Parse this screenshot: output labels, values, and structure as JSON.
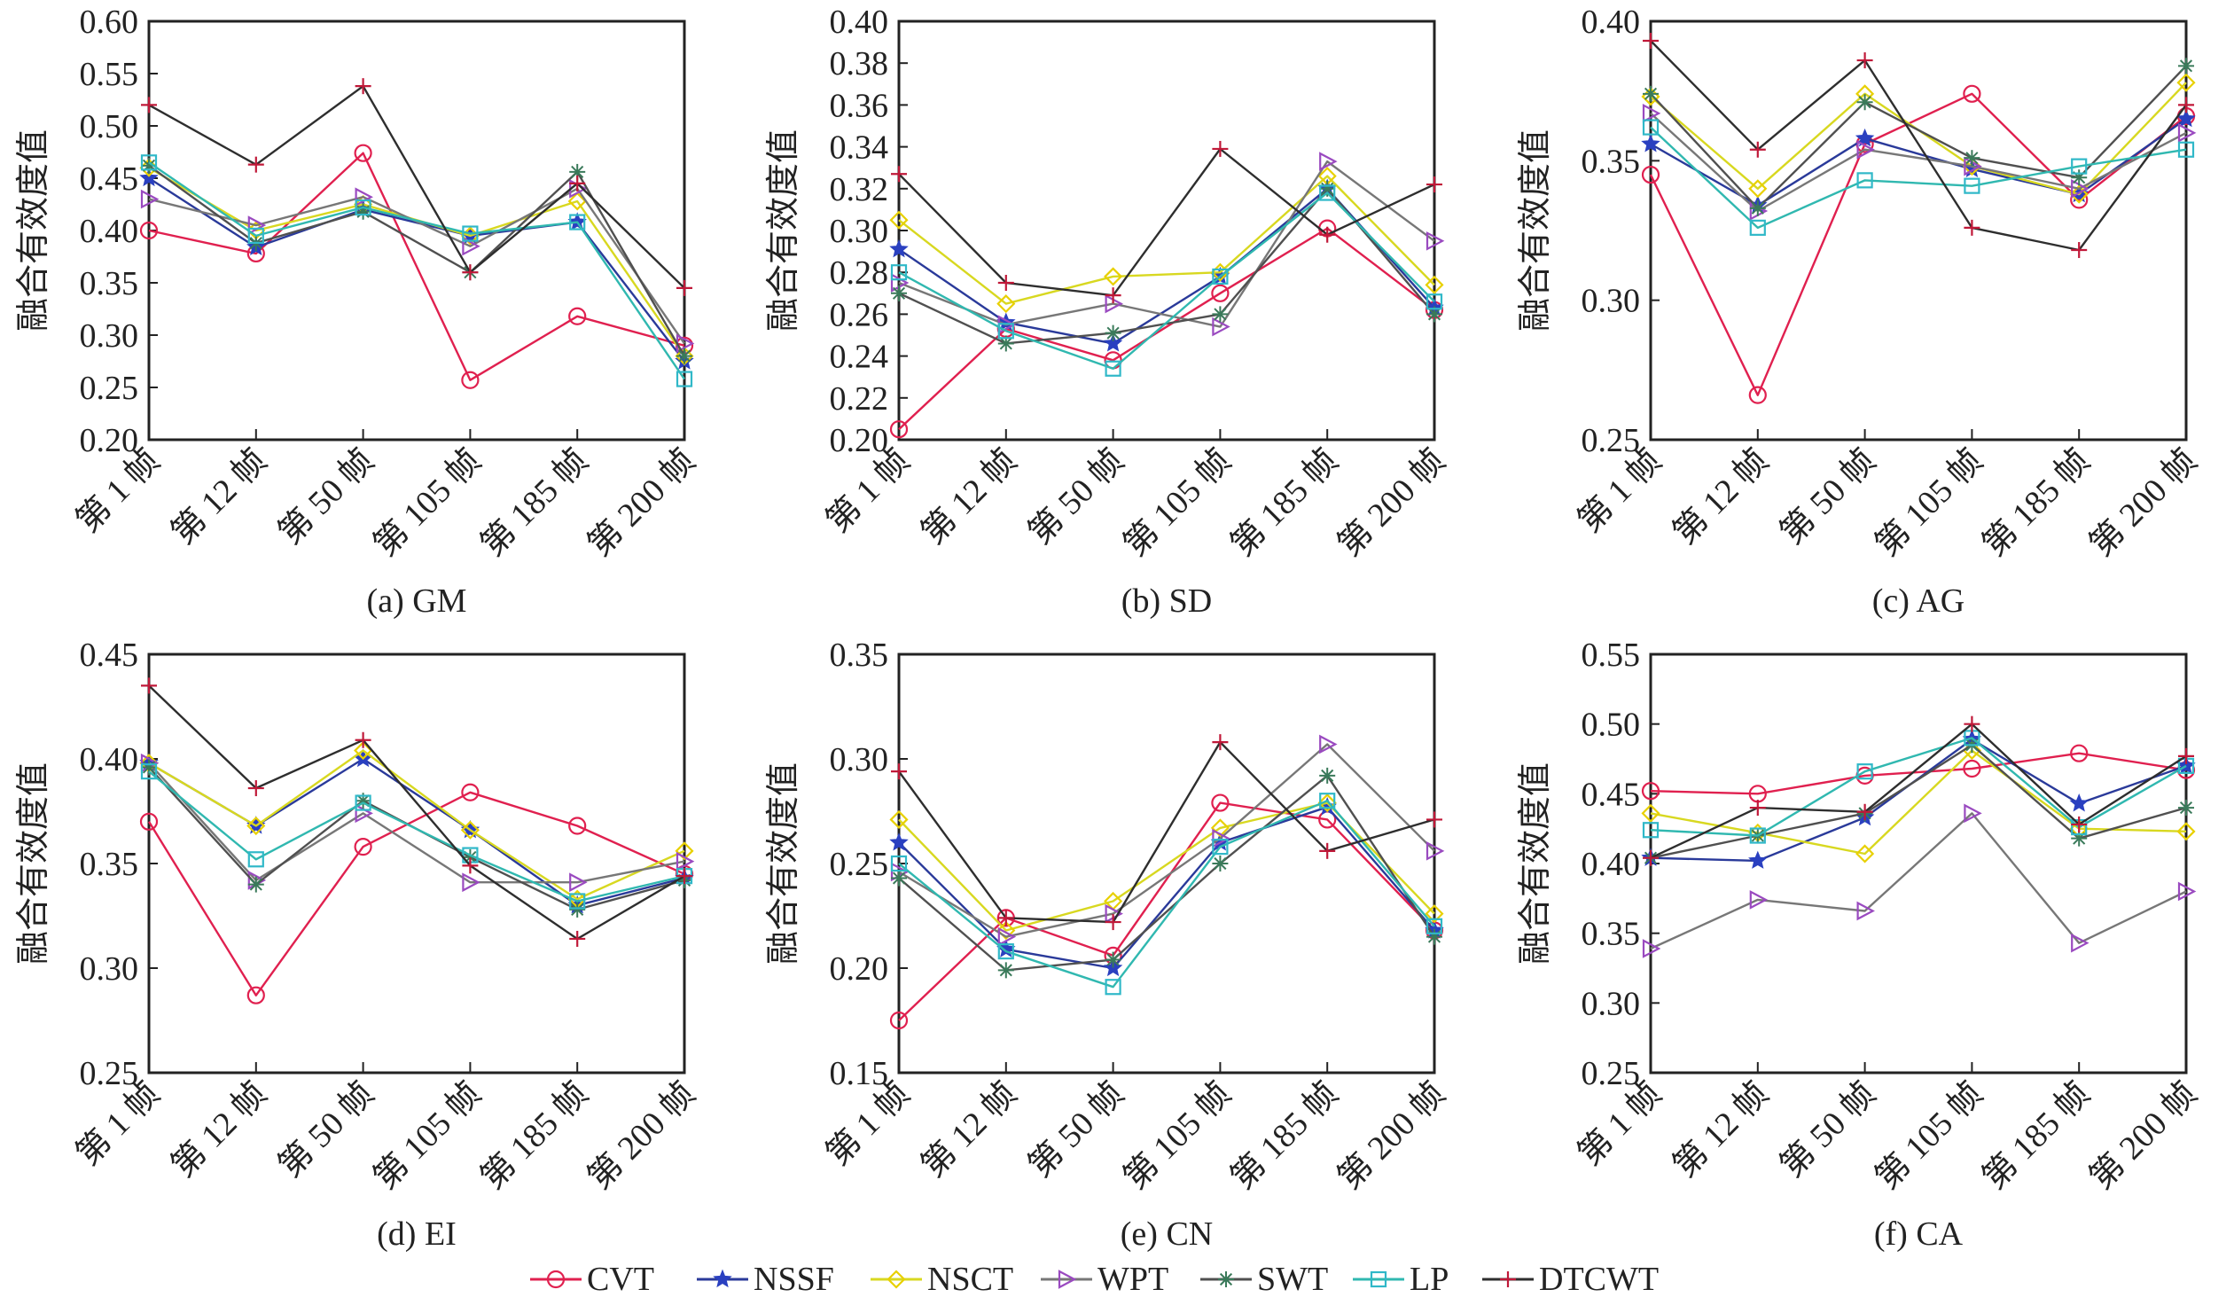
{
  "chart_data": [
    {
      "type": "line",
      "id": "a",
      "caption": "(a) GM",
      "ylabel": "融合有效度值",
      "xlabel": "",
      "ylim": [
        0.2,
        0.6
      ],
      "yticks": [
        "0.20",
        "0.25",
        "0.30",
        "0.35",
        "0.40",
        "0.45",
        "0.50",
        "0.55",
        "0.60"
      ],
      "categories": [
        "第 1 帧",
        "第 12 帧",
        "第 50 帧",
        "第 105 帧",
        "第 185 帧",
        "第 200 帧"
      ],
      "series": [
        {
          "name": "CVT",
          "values": [
            0.4,
            0.378,
            0.474,
            0.257,
            0.318,
            0.29
          ]
        },
        {
          "name": "NSSF",
          "values": [
            0.45,
            0.384,
            0.42,
            0.395,
            0.408,
            0.275
          ]
        },
        {
          "name": "NSCT",
          "values": [
            0.46,
            0.4,
            0.425,
            0.395,
            0.428,
            0.28
          ]
        },
        {
          "name": "WPT",
          "values": [
            0.43,
            0.405,
            0.432,
            0.385,
            0.44,
            0.292
          ]
        },
        {
          "name": "SWT",
          "values": [
            0.462,
            0.388,
            0.418,
            0.36,
            0.456,
            0.28
          ]
        },
        {
          "name": "LP",
          "values": [
            0.465,
            0.395,
            0.422,
            0.397,
            0.408,
            0.258
          ]
        },
        {
          "name": "DTCWT",
          "values": [
            0.52,
            0.463,
            0.538,
            0.36,
            0.445,
            0.345
          ]
        }
      ],
      "grid": false
    },
    {
      "type": "line",
      "id": "b",
      "caption": "(b) SD",
      "ylabel": "融合有效度值",
      "xlabel": "",
      "ylim": [
        0.2,
        0.4
      ],
      "yticks": [
        "0.20",
        "0.22",
        "0.24",
        "0.26",
        "0.28",
        "0.30",
        "0.32",
        "0.34",
        "0.36",
        "0.38",
        "0.40"
      ],
      "categories": [
        "第 1 帧",
        "第 12 帧",
        "第 50 帧",
        "第 105 帧",
        "第 185 帧",
        "第 200 帧"
      ],
      "series": [
        {
          "name": "CVT",
          "values": [
            0.205,
            0.253,
            0.238,
            0.27,
            0.301,
            0.262
          ]
        },
        {
          "name": "NSSF",
          "values": [
            0.291,
            0.256,
            0.246,
            0.278,
            0.32,
            0.263
          ]
        },
        {
          "name": "NSCT",
          "values": [
            0.305,
            0.265,
            0.278,
            0.28,
            0.326,
            0.274
          ]
        },
        {
          "name": "WPT",
          "values": [
            0.275,
            0.255,
            0.265,
            0.254,
            0.333,
            0.295
          ]
        },
        {
          "name": "SWT",
          "values": [
            0.27,
            0.246,
            0.251,
            0.26,
            0.32,
            0.26
          ]
        },
        {
          "name": "LP",
          "values": [
            0.28,
            0.252,
            0.234,
            0.278,
            0.318,
            0.266
          ]
        },
        {
          "name": "DTCWT",
          "values": [
            0.327,
            0.275,
            0.269,
            0.339,
            0.298,
            0.322
          ]
        }
      ],
      "grid": false
    },
    {
      "type": "line",
      "id": "c",
      "caption": "(c) AG",
      "ylabel": "融合有效度值",
      "xlabel": "",
      "ylim": [
        0.25,
        0.4
      ],
      "yticks": [
        "0.25",
        "0.30",
        "0.35",
        "0.40"
      ],
      "categories": [
        "第 1 帧",
        "第 12 帧",
        "第 50 帧",
        "第 105 帧",
        "第 185 帧",
        "第 200 帧"
      ],
      "series": [
        {
          "name": "CVT",
          "values": [
            0.345,
            0.266,
            0.356,
            0.374,
            0.336,
            0.366
          ]
        },
        {
          "name": "NSSF",
          "values": [
            0.356,
            0.334,
            0.358,
            0.347,
            0.338,
            0.365
          ]
        },
        {
          "name": "NSCT",
          "values": [
            0.373,
            0.34,
            0.374,
            0.348,
            0.338,
            0.378
          ]
        },
        {
          "name": "WPT",
          "values": [
            0.367,
            0.332,
            0.354,
            0.348,
            0.34,
            0.36
          ]
        },
        {
          "name": "SWT",
          "values": [
            0.374,
            0.333,
            0.371,
            0.351,
            0.344,
            0.384
          ]
        },
        {
          "name": "LP",
          "values": [
            0.362,
            0.326,
            0.343,
            0.341,
            0.348,
            0.354
          ]
        },
        {
          "name": "DTCWT",
          "values": [
            0.393,
            0.354,
            0.386,
            0.326,
            0.318,
            0.37
          ]
        }
      ],
      "grid": false
    },
    {
      "type": "line",
      "id": "d",
      "caption": "(d) EI",
      "ylabel": "融合有效度值",
      "xlabel": "",
      "ylim": [
        0.25,
        0.45
      ],
      "yticks": [
        "0.25",
        "0.30",
        "0.35",
        "0.40",
        "0.45"
      ],
      "categories": [
        "第 1 帧",
        "第 12 帧",
        "第 50 帧",
        "第 105 帧",
        "第 185 帧",
        "第 200 帧"
      ],
      "series": [
        {
          "name": "CVT",
          "values": [
            0.37,
            0.287,
            0.358,
            0.384,
            0.368,
            0.345
          ]
        },
        {
          "name": "NSSF",
          "values": [
            0.398,
            0.368,
            0.4,
            0.366,
            0.33,
            0.343
          ]
        },
        {
          "name": "NSCT",
          "values": [
            0.398,
            0.368,
            0.404,
            0.366,
            0.333,
            0.356
          ]
        },
        {
          "name": "WPT",
          "values": [
            0.398,
            0.342,
            0.374,
            0.341,
            0.341,
            0.351
          ]
        },
        {
          "name": "SWT",
          "values": [
            0.396,
            0.34,
            0.38,
            0.353,
            0.328,
            0.342
          ]
        },
        {
          "name": "LP",
          "values": [
            0.394,
            0.352,
            0.379,
            0.354,
            0.332,
            0.344
          ]
        },
        {
          "name": "DTCWT",
          "values": [
            0.435,
            0.386,
            0.409,
            0.349,
            0.314,
            0.344
          ]
        }
      ],
      "grid": false
    },
    {
      "type": "line",
      "id": "e",
      "caption": "(e) CN",
      "ylabel": "融合有效度值",
      "xlabel": "",
      "ylim": [
        0.15,
        0.35
      ],
      "yticks": [
        "0.15",
        "0.20",
        "0.25",
        "0.30",
        "0.35"
      ],
      "categories": [
        "第 1 帧",
        "第 12 帧",
        "第 50 帧",
        "第 105 帧",
        "第 185 帧",
        "第 200 帧"
      ],
      "series": [
        {
          "name": "CVT",
          "values": [
            0.175,
            0.224,
            0.206,
            0.279,
            0.271,
            0.218
          ]
        },
        {
          "name": "NSSF",
          "values": [
            0.26,
            0.209,
            0.2,
            0.26,
            0.277,
            0.218
          ]
        },
        {
          "name": "NSCT",
          "values": [
            0.271,
            0.218,
            0.232,
            0.267,
            0.279,
            0.226
          ]
        },
        {
          "name": "WPT",
          "values": [
            0.246,
            0.215,
            0.226,
            0.262,
            0.307,
            0.256
          ]
        },
        {
          "name": "SWT",
          "values": [
            0.243,
            0.199,
            0.204,
            0.25,
            0.292,
            0.215
          ]
        },
        {
          "name": "LP",
          "values": [
            0.25,
            0.208,
            0.191,
            0.258,
            0.28,
            0.22
          ]
        },
        {
          "name": "DTCWT",
          "values": [
            0.294,
            0.224,
            0.222,
            0.308,
            0.256,
            0.271
          ]
        }
      ],
      "grid": false
    },
    {
      "type": "line",
      "id": "f",
      "caption": "(f) CA",
      "ylabel": "融合有效度值",
      "xlabel": "",
      "ylim": [
        0.25,
        0.55
      ],
      "yticks": [
        "0.25",
        "0.30",
        "0.35",
        "0.40",
        "0.45",
        "0.50",
        "0.55"
      ],
      "categories": [
        "第 1 帧",
        "第 12 帧",
        "第 50 帧",
        "第 105 帧",
        "第 185 帧",
        "第 200 帧"
      ],
      "series": [
        {
          "name": "CVT",
          "values": [
            0.452,
            0.45,
            0.463,
            0.468,
            0.479,
            0.467
          ]
        },
        {
          "name": "NSSF",
          "values": [
            0.404,
            0.402,
            0.433,
            0.489,
            0.443,
            0.47
          ]
        },
        {
          "name": "NSCT",
          "values": [
            0.436,
            0.422,
            0.407,
            0.481,
            0.425,
            0.423
          ]
        },
        {
          "name": "WPT",
          "values": [
            0.339,
            0.374,
            0.366,
            0.436,
            0.343,
            0.38
          ]
        },
        {
          "name": "SWT",
          "values": [
            0.404,
            0.42,
            0.436,
            0.485,
            0.418,
            0.44
          ]
        },
        {
          "name": "LP",
          "values": [
            0.424,
            0.42,
            0.466,
            0.49,
            0.426,
            0.47
          ]
        },
        {
          "name": "DTCWT",
          "values": [
            0.404,
            0.44,
            0.437,
            0.5,
            0.428,
            0.477
          ]
        }
      ],
      "grid": false
    }
  ],
  "legend": {
    "placement": "bottom-center",
    "entries": [
      {
        "name": "CVT",
        "marker": "circle",
        "line_color": "#e0204f",
        "marker_color": "#e0204f"
      },
      {
        "name": "NSSF",
        "marker": "star",
        "line_color": "#3a3a3a",
        "marker_color": "#2a2ad0"
      },
      {
        "name": "NSCT",
        "marker": "diamond",
        "line_color": "#c8c8c8",
        "marker_color": "#e0e000"
      },
      {
        "name": "WPT",
        "marker": "triangle-right",
        "line_color": "#6e6e6e",
        "marker_color": "#6e6e6e"
      },
      {
        "name": "SWT",
        "marker": "asterisk",
        "line_color": "#555555",
        "marker_color": "#555555"
      },
      {
        "name": "LP",
        "marker": "square",
        "line_color": "#9a9a9a",
        "marker_color": "#20c0c8"
      },
      {
        "name": "DTCWT",
        "marker": "plus",
        "line_color": "#2a2a2a",
        "marker_color": "#2a2a2a"
      }
    ]
  },
  "series_style": {
    "CVT": {
      "line": "#e0204f",
      "marker": "#e0204f",
      "shape": "circle"
    },
    "NSSF": {
      "line": "#2a3a9a",
      "marker": "#2a40c0",
      "shape": "star"
    },
    "NSCT": {
      "line": "#d8d820",
      "marker": "#e8d000",
      "shape": "diamond"
    },
    "WPT": {
      "line": "#777777",
      "marker": "#9a4ac0",
      "shape": "triangle-right"
    },
    "SWT": {
      "line": "#505050",
      "marker": "#3a7a5a",
      "shape": "asterisk"
    },
    "LP": {
      "line": "#30b8b0",
      "marker": "#30b8c8",
      "shape": "square"
    },
    "DTCWT": {
      "line": "#2e2e2e",
      "marker": "#c01838",
      "shape": "plus"
    }
  }
}
